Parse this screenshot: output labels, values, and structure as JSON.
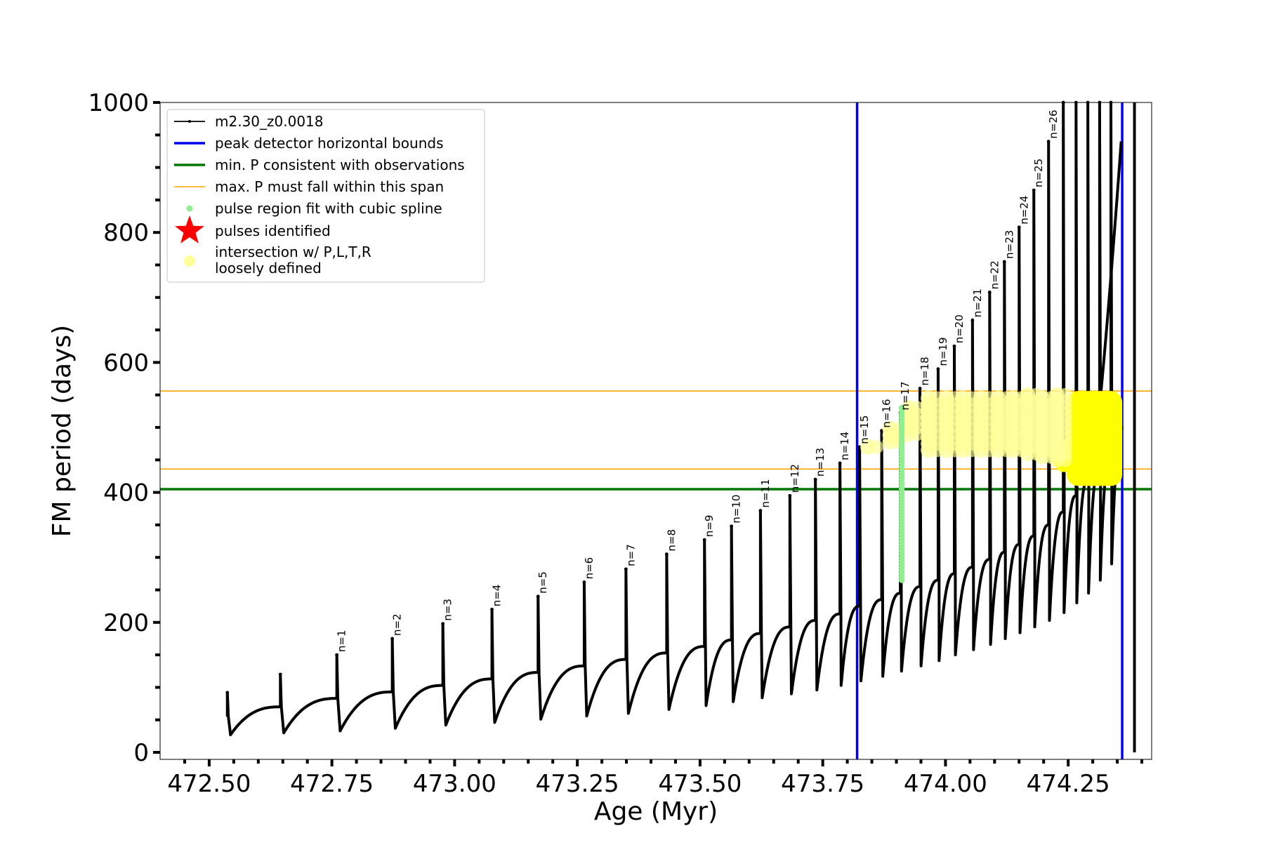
{
  "chart_data": {
    "type": "line",
    "title": "",
    "xlabel": "Age (Myr)",
    "ylabel": "FM period (days)",
    "xlim": [
      472.4,
      474.42
    ],
    "ylim": [
      0,
      1000
    ],
    "xticks": [
      472.5,
      472.75,
      473.0,
      473.25,
      473.5,
      473.75,
      474.0,
      474.25
    ],
    "xtick_labels": [
      "472.50",
      "472.75",
      "473.00",
      "473.25",
      "473.50",
      "473.75",
      "474.00",
      "474.25"
    ],
    "yticks": [
      0,
      200,
      400,
      600,
      800,
      1000
    ],
    "ytick_labels": [
      "0",
      "200",
      "400",
      "600",
      "800",
      "1000"
    ],
    "grid": false,
    "legend_position": "top-left",
    "legend": [
      {
        "label": "m2.30_z0.0018",
        "color": "#000000",
        "marker": "line-dot"
      },
      {
        "label": "peak detector horizontal bounds",
        "color": "#0000ee",
        "marker": "line-thick"
      },
      {
        "label": "min. P consistent with observations",
        "color": "#007700",
        "marker": "line-thick"
      },
      {
        "label": "max. P must fall within this span",
        "color": "#ffa500",
        "marker": "line-thin"
      },
      {
        "label": "pulse region fit with cubic spline",
        "color": "#90ee90",
        "marker": "dot"
      },
      {
        "label": "pulses identified",
        "color": "#ff0000",
        "marker": "star"
      },
      {
        "label": "intersection w/ P,L,T,R\nloosely defined",
        "color": "#ffff99",
        "marker": "circle"
      }
    ],
    "series": [
      {
        "name": "m2.30_z0.0018",
        "color": "#000000",
        "pulses": [
          {
            "age": 472.537,
            "spike": 92,
            "start": 55,
            "min": 27,
            "end": 70
          },
          {
            "age": 472.645,
            "spike": 120,
            "start": 70,
            "min": 30,
            "end": 83
          },
          {
            "age": 472.76,
            "spike": 150,
            "label": "n=1",
            "start": 83,
            "min": 33,
            "end": 93
          },
          {
            "age": 472.873,
            "spike": 175,
            "label": "n=2",
            "start": 93,
            "min": 37,
            "end": 103
          },
          {
            "age": 472.976,
            "spike": 198,
            "label": "n=3",
            "start": 103,
            "min": 42,
            "end": 113
          },
          {
            "age": 473.076,
            "spike": 220,
            "label": "n=4",
            "start": 113,
            "min": 46,
            "end": 123
          },
          {
            "age": 473.17,
            "spike": 240,
            "label": "n=5",
            "start": 123,
            "min": 51,
            "end": 133
          },
          {
            "age": 473.264,
            "spike": 262,
            "label": "n=6",
            "start": 133,
            "min": 56,
            "end": 143
          },
          {
            "age": 473.349,
            "spike": 282,
            "label": "n=7",
            "start": 143,
            "min": 60,
            "end": 153
          },
          {
            "age": 473.432,
            "spike": 305,
            "label": "n=8",
            "start": 153,
            "min": 66,
            "end": 163
          },
          {
            "age": 473.509,
            "spike": 327,
            "label": "n=9",
            "start": 163,
            "min": 72,
            "end": 173
          },
          {
            "age": 473.564,
            "spike": 348,
            "label": "n=10",
            "start": 173,
            "min": 78,
            "end": 183
          },
          {
            "age": 473.623,
            "spike": 372,
            "label": "n=11",
            "start": 183,
            "min": 84,
            "end": 193
          },
          {
            "age": 473.683,
            "spike": 395,
            "label": "n=12",
            "start": 193,
            "min": 90,
            "end": 203
          },
          {
            "age": 473.735,
            "spike": 420,
            "label": "n=13",
            "start": 203,
            "min": 96,
            "end": 213
          },
          {
            "age": 473.785,
            "spike": 445,
            "label": "n=14",
            "start": 213,
            "min": 103,
            "end": 225
          },
          {
            "age": 473.825,
            "spike": 470,
            "label": "n=15",
            "start": 225,
            "min": 110,
            "end": 235
          },
          {
            "age": 473.87,
            "spike": 495,
            "label": "n=16",
            "start": 235,
            "min": 117,
            "end": 245
          },
          {
            "age": 473.908,
            "spike": 522,
            "label": "n=17",
            "start": 245,
            "min": 125,
            "end": 255
          },
          {
            "age": 473.948,
            "spike": 560,
            "label": "n=18",
            "start": 255,
            "min": 133,
            "end": 265
          },
          {
            "age": 473.985,
            "spike": 590,
            "label": "n=19",
            "start": 265,
            "min": 141,
            "end": 275
          },
          {
            "age": 474.018,
            "spike": 625,
            "label": "n=20",
            "start": 275,
            "min": 150,
            "end": 285
          },
          {
            "age": 474.055,
            "spike": 665,
            "label": "n=21",
            "start": 285,
            "min": 158,
            "end": 297
          },
          {
            "age": 474.09,
            "spike": 708,
            "label": "n=22",
            "start": 297,
            "min": 166,
            "end": 308
          },
          {
            "age": 474.12,
            "spike": 755,
            "label": "n=23",
            "start": 308,
            "min": 175,
            "end": 320
          },
          {
            "age": 474.15,
            "spike": 808,
            "label": "n=24",
            "start": 320,
            "min": 184,
            "end": 333
          },
          {
            "age": 474.18,
            "spike": 865,
            "label": "n=25",
            "start": 333,
            "min": 193,
            "end": 350
          },
          {
            "age": 474.21,
            "spike": 940,
            "label": "n=26",
            "start": 350,
            "min": 203,
            "end": 370
          },
          {
            "age": 474.24,
            "spike": 1000,
            "start": 370,
            "min": 215,
            "end": 395
          },
          {
            "age": 474.266,
            "spike": 1000,
            "start": 395,
            "min": 230,
            "end": 420
          },
          {
            "age": 474.29,
            "spike": 1000,
            "start": 420,
            "min": 245,
            "end": 440
          },
          {
            "age": 474.314,
            "spike": 1000,
            "start": 440,
            "min": 265,
            "end": 460
          },
          {
            "age": 474.337,
            "spike": 1000,
            "start": 460,
            "min": 290,
            "end": 500
          }
        ],
        "final_rise": {
          "from_age": 474.315,
          "to_age": 474.358,
          "from_period": 540,
          "to_period": 940
        },
        "final_drop_age": 474.385
      }
    ],
    "vertical_lines": [
      {
        "x": 473.82,
        "color": "#0000ee"
      },
      {
        "x": 474.36,
        "color": "#0000ee"
      }
    ],
    "horizontal_lines": [
      {
        "y": 405,
        "color": "#007700"
      },
      {
        "y": 436,
        "color": "#ffa500"
      },
      {
        "y": 556,
        "color": "#ffa500"
      }
    ],
    "spline_region": {
      "age": 473.908,
      "from_period": 265,
      "to_period": 530,
      "color": "#90ee90"
    },
    "intersection_points": {
      "color": "#ffff00",
      "loose_color": "#ffff99",
      "clusters": [
        {
          "age": 473.825,
          "from_period": 470,
          "to_period": 475
        },
        {
          "age": 473.87,
          "from_period": 478,
          "to_period": 500
        },
        {
          "age": 473.908,
          "from_period": 490,
          "to_period": 530
        },
        {
          "age": 473.948,
          "from_period": 465,
          "to_period": 550
        },
        {
          "age": 473.985,
          "from_period": 465,
          "to_period": 550
        },
        {
          "age": 474.018,
          "from_period": 465,
          "to_period": 550
        },
        {
          "age": 474.055,
          "from_period": 465,
          "to_period": 550
        },
        {
          "age": 474.09,
          "from_period": 465,
          "to_period": 550
        },
        {
          "age": 474.12,
          "from_period": 465,
          "to_period": 550
        },
        {
          "age": 474.15,
          "from_period": 460,
          "to_period": 550
        },
        {
          "age": 474.18,
          "from_period": 455,
          "to_period": 550
        },
        {
          "age": 474.21,
          "from_period": 450,
          "to_period": 550
        }
      ],
      "dense_region": {
        "from_age": 474.23,
        "to_age": 474.36,
        "from_period": 410,
        "to_period": 556
      }
    }
  }
}
